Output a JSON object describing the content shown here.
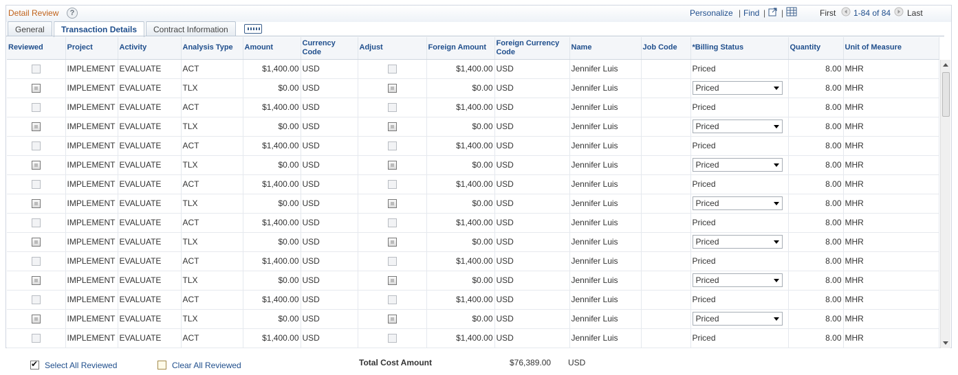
{
  "grid": {
    "title": "Detail Review",
    "help_icon": "help-icon",
    "nav": {
      "personalize": "Personalize",
      "find": "Find",
      "separator": "|",
      "first": "First",
      "range": "1-84 of 84",
      "last": "Last"
    },
    "tabs": [
      {
        "label": "General",
        "active": false
      },
      {
        "label": "Transaction Details",
        "active": true
      },
      {
        "label": "Contract Information",
        "active": false
      }
    ],
    "columns": [
      "Reviewed",
      "Project",
      "Activity",
      "Analysis Type",
      "Amount",
      "Currency Code",
      "Adjust",
      "Foreign Amount",
      "Foreign Currency Code",
      "Name",
      "Job Code",
      "*Billing Status",
      "Quantity",
      "Unit of Measure"
    ],
    "rows": [
      {
        "project": "IMPLEMENT",
        "activity": "EVALUATE",
        "analysis_type": "ACT",
        "amount": "$1,400.00",
        "currency": "USD",
        "foreign_amount": "$1,400.00",
        "foreign_currency": "USD",
        "name": "Jennifer Luis",
        "job_code": "",
        "billing_status": "Priced",
        "editable_status": false,
        "quantity": "8.00",
        "uom": "MHR"
      },
      {
        "project": "IMPLEMENT",
        "activity": "EVALUATE",
        "analysis_type": "TLX",
        "amount": "$0.00",
        "currency": "USD",
        "foreign_amount": "$0.00",
        "foreign_currency": "USD",
        "name": "Jennifer Luis",
        "job_code": "",
        "billing_status": "Priced",
        "editable_status": true,
        "quantity": "8.00",
        "uom": "MHR"
      },
      {
        "project": "IMPLEMENT",
        "activity": "EVALUATE",
        "analysis_type": "ACT",
        "amount": "$1,400.00",
        "currency": "USD",
        "foreign_amount": "$1,400.00",
        "foreign_currency": "USD",
        "name": "Jennifer Luis",
        "job_code": "",
        "billing_status": "Priced",
        "editable_status": false,
        "quantity": "8.00",
        "uom": "MHR"
      },
      {
        "project": "IMPLEMENT",
        "activity": "EVALUATE",
        "analysis_type": "TLX",
        "amount": "$0.00",
        "currency": "USD",
        "foreign_amount": "$0.00",
        "foreign_currency": "USD",
        "name": "Jennifer Luis",
        "job_code": "",
        "billing_status": "Priced",
        "editable_status": true,
        "quantity": "8.00",
        "uom": "MHR"
      },
      {
        "project": "IMPLEMENT",
        "activity": "EVALUATE",
        "analysis_type": "ACT",
        "amount": "$1,400.00",
        "currency": "USD",
        "foreign_amount": "$1,400.00",
        "foreign_currency": "USD",
        "name": "Jennifer Luis",
        "job_code": "",
        "billing_status": "Priced",
        "editable_status": false,
        "quantity": "8.00",
        "uom": "MHR"
      },
      {
        "project": "IMPLEMENT",
        "activity": "EVALUATE",
        "analysis_type": "TLX",
        "amount": "$0.00",
        "currency": "USD",
        "foreign_amount": "$0.00",
        "foreign_currency": "USD",
        "name": "Jennifer Luis",
        "job_code": "",
        "billing_status": "Priced",
        "editable_status": true,
        "quantity": "8.00",
        "uom": "MHR"
      },
      {
        "project": "IMPLEMENT",
        "activity": "EVALUATE",
        "analysis_type": "ACT",
        "amount": "$1,400.00",
        "currency": "USD",
        "foreign_amount": "$1,400.00",
        "foreign_currency": "USD",
        "name": "Jennifer Luis",
        "job_code": "",
        "billing_status": "Priced",
        "editable_status": false,
        "quantity": "8.00",
        "uom": "MHR"
      },
      {
        "project": "IMPLEMENT",
        "activity": "EVALUATE",
        "analysis_type": "TLX",
        "amount": "$0.00",
        "currency": "USD",
        "foreign_amount": "$0.00",
        "foreign_currency": "USD",
        "name": "Jennifer Luis",
        "job_code": "",
        "billing_status": "Priced",
        "editable_status": true,
        "quantity": "8.00",
        "uom": "MHR"
      },
      {
        "project": "IMPLEMENT",
        "activity": "EVALUATE",
        "analysis_type": "ACT",
        "amount": "$1,400.00",
        "currency": "USD",
        "foreign_amount": "$1,400.00",
        "foreign_currency": "USD",
        "name": "Jennifer Luis",
        "job_code": "",
        "billing_status": "Priced",
        "editable_status": false,
        "quantity": "8.00",
        "uom": "MHR"
      },
      {
        "project": "IMPLEMENT",
        "activity": "EVALUATE",
        "analysis_type": "TLX",
        "amount": "$0.00",
        "currency": "USD",
        "foreign_amount": "$0.00",
        "foreign_currency": "USD",
        "name": "Jennifer Luis",
        "job_code": "",
        "billing_status": "Priced",
        "editable_status": true,
        "quantity": "8.00",
        "uom": "MHR"
      },
      {
        "project": "IMPLEMENT",
        "activity": "EVALUATE",
        "analysis_type": "ACT",
        "amount": "$1,400.00",
        "currency": "USD",
        "foreign_amount": "$1,400.00",
        "foreign_currency": "USD",
        "name": "Jennifer Luis",
        "job_code": "",
        "billing_status": "Priced",
        "editable_status": false,
        "quantity": "8.00",
        "uom": "MHR"
      },
      {
        "project": "IMPLEMENT",
        "activity": "EVALUATE",
        "analysis_type": "TLX",
        "amount": "$0.00",
        "currency": "USD",
        "foreign_amount": "$0.00",
        "foreign_currency": "USD",
        "name": "Jennifer Luis",
        "job_code": "",
        "billing_status": "Priced",
        "editable_status": true,
        "quantity": "8.00",
        "uom": "MHR"
      },
      {
        "project": "IMPLEMENT",
        "activity": "EVALUATE",
        "analysis_type": "ACT",
        "amount": "$1,400.00",
        "currency": "USD",
        "foreign_amount": "$1,400.00",
        "foreign_currency": "USD",
        "name": "Jennifer Luis",
        "job_code": "",
        "billing_status": "Priced",
        "editable_status": false,
        "quantity": "8.00",
        "uom": "MHR"
      },
      {
        "project": "IMPLEMENT",
        "activity": "EVALUATE",
        "analysis_type": "TLX",
        "amount": "$0.00",
        "currency": "USD",
        "foreign_amount": "$0.00",
        "foreign_currency": "USD",
        "name": "Jennifer Luis",
        "job_code": "",
        "billing_status": "Priced",
        "editable_status": true,
        "quantity": "8.00",
        "uom": "MHR"
      },
      {
        "project": "IMPLEMENT",
        "activity": "EVALUATE",
        "analysis_type": "ACT",
        "amount": "$1,400.00",
        "currency": "USD",
        "foreign_amount": "$1,400.00",
        "foreign_currency": "USD",
        "name": "Jennifer Luis",
        "job_code": "",
        "billing_status": "Priced",
        "editable_status": false,
        "quantity": "8.00",
        "uom": "MHR"
      }
    ]
  },
  "footer": {
    "select_all": "Select All Reviewed",
    "clear_all": "Clear All Reviewed",
    "total_label": "Total Cost Amount",
    "total_value": "$76,389.00",
    "total_currency": "USD"
  },
  "colors": {
    "title": "#c0621a",
    "link": "#1f4e8c"
  }
}
